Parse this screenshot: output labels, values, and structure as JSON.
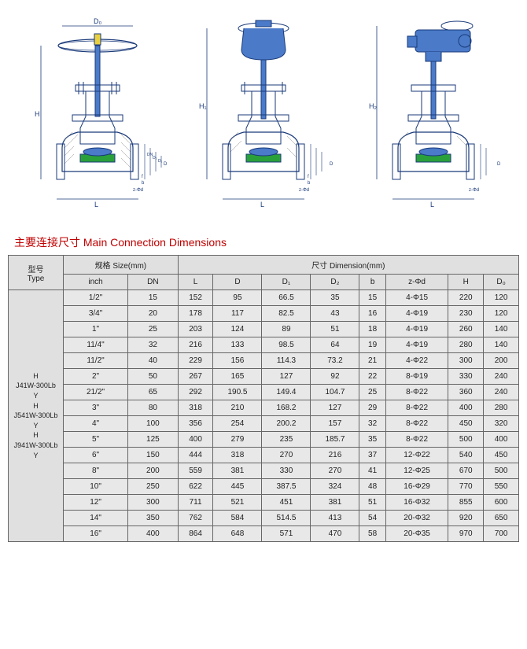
{
  "title": "主要连接尺寸 Main Connection Dimensions",
  "diagrams": {
    "dim_labels": [
      "D₀",
      "H",
      "L",
      "f",
      "b",
      "D",
      "D₁",
      "D₂",
      "DN",
      "z-Φd",
      "H₁",
      "H₂"
    ],
    "colors": {
      "outline": "#1a3a7a",
      "fill_blue": "#4a7ac8",
      "fill_green": "#2aa03a",
      "fill_yellow": "#e8d040",
      "hatch": "#888888",
      "dim_line": "#1a3a7a"
    }
  },
  "table": {
    "headers": {
      "type": "型号\nType",
      "size": "规格 Size(mm)",
      "dimension": "尺寸 Dimension(mm)",
      "cols": [
        "inch",
        "DN",
        "L",
        "D",
        "D₁",
        "D₂",
        "b",
        "z-Φd",
        "H",
        "D₀"
      ]
    },
    "type_label": "H\nJ41W-300Lb\nY\nH\nJ541W-300Lb\nY\nH\nJ941W-300Lb\nY",
    "rows": [
      [
        "1/2\"",
        "15",
        "152",
        "95",
        "66.5",
        "35",
        "15",
        "4-Φ15",
        "220",
        "120"
      ],
      [
        "3/4\"",
        "20",
        "178",
        "117",
        "82.5",
        "43",
        "16",
        "4-Φ19",
        "230",
        "120"
      ],
      [
        "1\"",
        "25",
        "203",
        "124",
        "89",
        "51",
        "18",
        "4-Φ19",
        "260",
        "140"
      ],
      [
        "11/4\"",
        "32",
        "216",
        "133",
        "98.5",
        "64",
        "19",
        "4-Φ19",
        "280",
        "140"
      ],
      [
        "11/2\"",
        "40",
        "229",
        "156",
        "114.3",
        "73.2",
        "21",
        "4-Φ22",
        "300",
        "200"
      ],
      [
        "2\"",
        "50",
        "267",
        "165",
        "127",
        "92",
        "22",
        "8-Φ19",
        "330",
        "240"
      ],
      [
        "21/2\"",
        "65",
        "292",
        "190.5",
        "149.4",
        "104.7",
        "25",
        "8-Φ22",
        "360",
        "240"
      ],
      [
        "3\"",
        "80",
        "318",
        "210",
        "168.2",
        "127",
        "29",
        "8-Φ22",
        "400",
        "280"
      ],
      [
        "4\"",
        "100",
        "356",
        "254",
        "200.2",
        "157",
        "32",
        "8-Φ22",
        "450",
        "320"
      ],
      [
        "5\"",
        "125",
        "400",
        "279",
        "235",
        "185.7",
        "35",
        "8-Φ22",
        "500",
        "400"
      ],
      [
        "6\"",
        "150",
        "444",
        "318",
        "270",
        "216",
        "37",
        "12-Φ22",
        "540",
        "450"
      ],
      [
        "8\"",
        "200",
        "559",
        "381",
        "330",
        "270",
        "41",
        "12-Φ25",
        "670",
        "500"
      ],
      [
        "10\"",
        "250",
        "622",
        "445",
        "387.5",
        "324",
        "48",
        "16-Φ29",
        "770",
        "550"
      ],
      [
        "12\"",
        "300",
        "711",
        "521",
        "451",
        "381",
        "51",
        "16-Φ32",
        "855",
        "600"
      ],
      [
        "14\"",
        "350",
        "762",
        "584",
        "514.5",
        "413",
        "54",
        "20-Φ32",
        "920",
        "650"
      ],
      [
        "16\"",
        "400",
        "864",
        "648",
        "571",
        "470",
        "58",
        "20-Φ35",
        "970",
        "700"
      ]
    ]
  }
}
